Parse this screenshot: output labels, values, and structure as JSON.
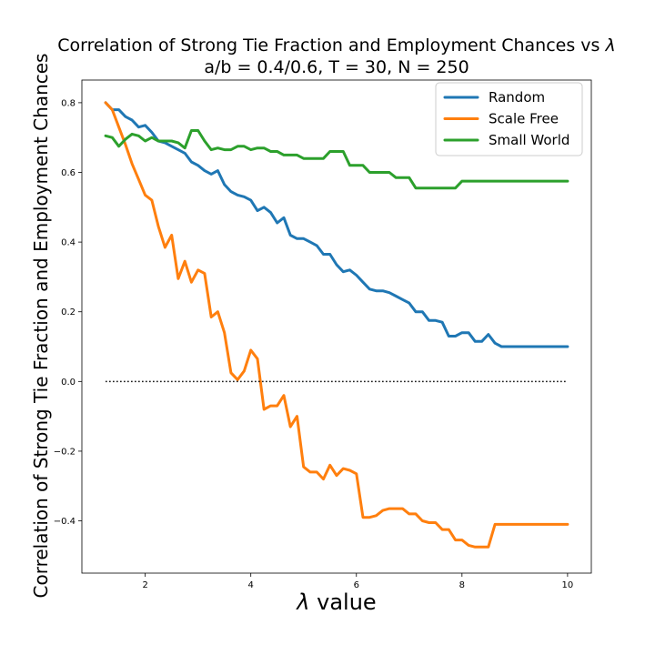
{
  "chart_data": {
    "type": "line",
    "title_line1_prefix": "Correlation of Strong Tie Fraction and Employment Chances vs ",
    "title_lambda": "λ",
    "title_line2": "a/b = 0.4/0.6, T = 30, N = 250",
    "xlabel_lambda": "λ",
    "xlabel_suffix": " value",
    "ylabel": "Correlation of Strong Tie Fraction and Employment Chances",
    "xlim": [
      0.8,
      10.45
    ],
    "ylim": [
      -0.55,
      0.865
    ],
    "xticks": [
      2,
      4,
      6,
      8,
      10
    ],
    "yticks": [
      -0.4,
      -0.2,
      0.0,
      0.2,
      0.4,
      0.6,
      0.8
    ],
    "xtick_labels": [
      "2",
      "4",
      "6",
      "8",
      "10"
    ],
    "ytick_labels": [
      "−0.4",
      "−0.2",
      "0.0",
      "0.2",
      "0.4",
      "0.6",
      "0.8"
    ],
    "grid": false,
    "legend_position": "top-right",
    "reference_line": {
      "y": 0.0,
      "x_range": [
        1.25,
        10.0
      ],
      "style": "dotted",
      "color": "#000000"
    },
    "x": [
      1.25,
      1.375,
      1.5,
      1.625,
      1.75,
      1.875,
      2.0,
      2.125,
      2.25,
      2.375,
      2.5,
      2.625,
      2.75,
      2.875,
      3.0,
      3.125,
      3.25,
      3.375,
      3.5,
      3.625,
      3.75,
      3.875,
      4.0,
      4.125,
      4.25,
      4.375,
      4.5,
      4.625,
      4.75,
      4.875,
      5.0,
      5.125,
      5.25,
      5.375,
      5.5,
      5.625,
      5.75,
      5.875,
      6.0,
      6.125,
      6.25,
      6.375,
      6.5,
      6.625,
      6.75,
      6.875,
      7.0,
      7.125,
      7.25,
      7.375,
      7.5,
      7.625,
      7.75,
      7.875,
      8.0,
      8.125,
      8.25,
      8.375,
      8.5,
      8.625,
      8.75,
      8.875,
      9.0,
      9.125,
      9.25,
      9.375,
      9.5,
      9.625,
      9.75,
      9.875,
      10.0
    ],
    "series": [
      {
        "name": "Random",
        "color": "#1f77b4",
        "values": [
          0.8,
          0.78,
          0.78,
          0.76,
          0.75,
          0.73,
          0.735,
          0.715,
          0.69,
          0.685,
          0.675,
          0.665,
          0.655,
          0.63,
          0.62,
          0.605,
          0.595,
          0.605,
          0.565,
          0.545,
          0.535,
          0.53,
          0.52,
          0.49,
          0.5,
          0.485,
          0.455,
          0.47,
          0.42,
          0.41,
          0.41,
          0.4,
          0.39,
          0.365,
          0.365,
          0.335,
          0.315,
          0.32,
          0.305,
          0.285,
          0.265,
          0.26,
          0.26,
          0.255,
          0.245,
          0.235,
          0.225,
          0.2,
          0.2,
          0.175,
          0.175,
          0.17,
          0.13,
          0.13,
          0.14,
          0.14,
          0.115,
          0.115,
          0.135,
          0.11,
          0.1,
          0.1,
          0.1,
          0.1,
          0.1,
          0.1,
          0.1,
          0.1,
          0.1,
          0.1,
          0.1
        ]
      },
      {
        "name": "Scale Free",
        "color": "#ff7f0e",
        "values": [
          0.8,
          0.78,
          0.73,
          0.68,
          0.625,
          0.58,
          0.535,
          0.52,
          0.445,
          0.385,
          0.42,
          0.295,
          0.345,
          0.285,
          0.32,
          0.31,
          0.185,
          0.2,
          0.14,
          0.025,
          0.005,
          0.03,
          0.09,
          0.065,
          -0.08,
          -0.07,
          -0.07,
          -0.04,
          -0.13,
          -0.1,
          -0.245,
          -0.26,
          -0.26,
          -0.28,
          -0.24,
          -0.27,
          -0.25,
          -0.255,
          -0.265,
          -0.39,
          -0.39,
          -0.385,
          -0.37,
          -0.365,
          -0.365,
          -0.365,
          -0.38,
          -0.38,
          -0.4,
          -0.405,
          -0.405,
          -0.425,
          -0.425,
          -0.455,
          -0.455,
          -0.47,
          -0.475,
          -0.475,
          -0.475,
          -0.41,
          -0.41,
          -0.41,
          -0.41,
          -0.41,
          -0.41,
          -0.41,
          -0.41,
          -0.41,
          -0.41,
          -0.41,
          -0.41
        ]
      },
      {
        "name": "Small World",
        "color": "#2ca02c",
        "values": [
          0.705,
          0.7,
          0.675,
          0.695,
          0.71,
          0.705,
          0.69,
          0.7,
          0.69,
          0.69,
          0.69,
          0.685,
          0.67,
          0.72,
          0.72,
          0.69,
          0.665,
          0.67,
          0.665,
          0.665,
          0.675,
          0.675,
          0.665,
          0.67,
          0.67,
          0.66,
          0.66,
          0.65,
          0.65,
          0.65,
          0.64,
          0.64,
          0.64,
          0.64,
          0.66,
          0.66,
          0.66,
          0.62,
          0.62,
          0.62,
          0.6,
          0.6,
          0.6,
          0.6,
          0.585,
          0.585,
          0.585,
          0.555,
          0.555,
          0.555,
          0.555,
          0.555,
          0.555,
          0.555,
          0.575,
          0.575,
          0.575,
          0.575,
          0.575,
          0.575,
          0.575,
          0.575,
          0.575,
          0.575,
          0.575,
          0.575,
          0.575,
          0.575,
          0.575,
          0.575,
          0.575
        ]
      }
    ]
  }
}
